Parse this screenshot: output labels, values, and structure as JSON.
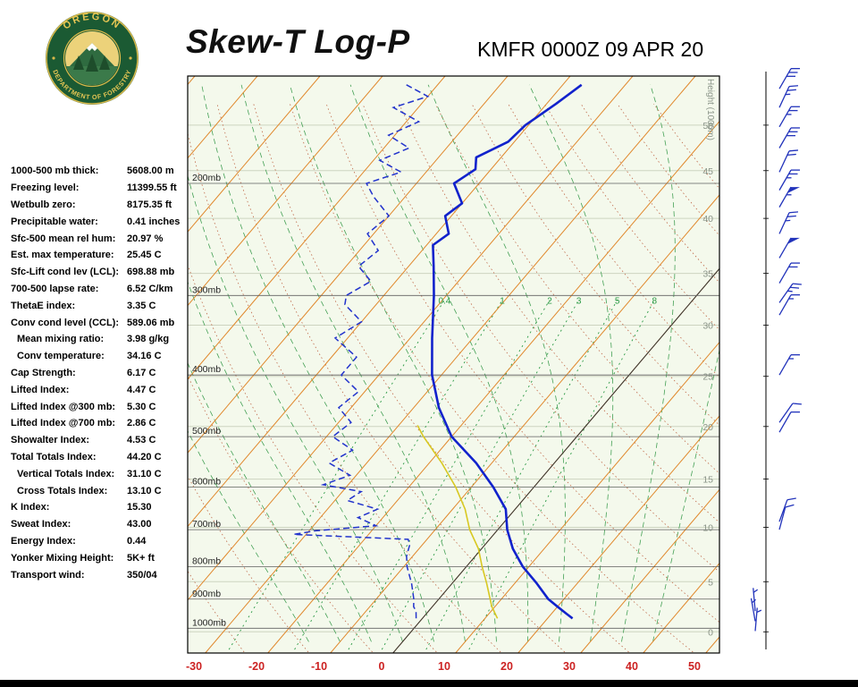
{
  "header": {
    "title": "Skew-T Log-P",
    "station": "KMFR 0000Z 09 APR 20",
    "logo": {
      "top_text": "OREGON",
      "bottom_text": "DEPARTMENT OF FORESTRY"
    }
  },
  "indices": [
    {
      "label": "1000-500 mb thick:",
      "value": "5608.00 m",
      "indent": false
    },
    {
      "label": "Freezing level:",
      "value": "11399.55 ft",
      "indent": false
    },
    {
      "label": "Wetbulb zero:",
      "value": "8175.35 ft",
      "indent": false
    },
    {
      "label": "Precipitable water:",
      "value": "0.41 inches",
      "indent": false
    },
    {
      "label": "Sfc-500 mean rel hum:",
      "value": "20.97 %",
      "indent": false
    },
    {
      "label": "Est. max temperature:",
      "value": "25.45 C",
      "indent": false
    },
    {
      "label": "Sfc-Lift cond lev (LCL):",
      "value": "698.88 mb",
      "indent": false
    },
    {
      "label": "700-500 lapse rate:",
      "value": "6.52 C/km",
      "indent": false
    },
    {
      "label": "ThetaE index:",
      "value": "3.35 C",
      "indent": false
    },
    {
      "label": "Conv cond level (CCL):",
      "value": "589.06 mb",
      "indent": false
    },
    {
      "label": "Mean mixing ratio:",
      "value": "3.98 g/kg",
      "indent": true
    },
    {
      "label": "Conv temperature:",
      "value": "34.16 C",
      "indent": true
    },
    {
      "label": "Cap Strength:",
      "value": "6.17 C",
      "indent": false
    },
    {
      "label": "Lifted Index:",
      "value": "4.47 C",
      "indent": false
    },
    {
      "label": "Lifted Index @300 mb:",
      "value": "5.30 C",
      "indent": false
    },
    {
      "label": "Lifted Index @700 mb:",
      "value": "2.86 C",
      "indent": false
    },
    {
      "label": "Showalter Index:",
      "value": "4.53 C",
      "indent": false
    },
    {
      "label": "Total Totals Index:",
      "value": "44.20 C",
      "indent": false
    },
    {
      "label": "Vertical Totals Index:",
      "value": "31.10 C",
      "indent": true
    },
    {
      "label": "Cross Totals Index:",
      "value": "13.10 C",
      "indent": true
    },
    {
      "label": "K Index:",
      "value": "15.30",
      "indent": false
    },
    {
      "label": "Sweat Index:",
      "value": "43.00",
      "indent": false
    },
    {
      "label": "Energy Index:",
      "value": "0.44",
      "indent": false
    },
    {
      "label": "Yonker Mixing Height:",
      "value": "5K+ ft",
      "indent": false
    },
    {
      "label": "Transport wind:",
      "value": "350/04",
      "indent": false
    }
  ],
  "chart_data": {
    "type": "line",
    "title": "Skew-T Log-P sounding",
    "x_axis": {
      "unit": "C",
      "ticks": [
        -30,
        -20,
        -10,
        0,
        10,
        20,
        30,
        40,
        50
      ],
      "label_color": "#cc2222"
    },
    "pressure_levels_mb": [
      200,
      300,
      400,
      500,
      600,
      700,
      800,
      900,
      1000
    ],
    "pressure_label_suffix": "mb",
    "height_axis": {
      "title": "Height (1000m)",
      "ticks": [
        {
          "label": "50",
          "p": 162
        },
        {
          "label": "45",
          "p": 191
        },
        {
          "label": "40",
          "p": 227
        },
        {
          "label": "35",
          "p": 277
        },
        {
          "label": "30",
          "p": 334
        },
        {
          "label": "25",
          "p": 402
        },
        {
          "label": "20",
          "p": 482
        },
        {
          "label": "15",
          "p": 583
        },
        {
          "label": "10",
          "p": 694
        },
        {
          "label": "5",
          "p": 845
        },
        {
          "label": "0",
          "p": 1013
        }
      ]
    },
    "isotherms_c": {
      "min": -110,
      "max": 50,
      "step": 10
    },
    "dry_adiabats_c": {
      "min": -30,
      "max": 140,
      "step": 10
    },
    "moist_adiabats_c": {
      "min": -15,
      "max": 40,
      "step": 5
    },
    "mixing_ratio_lines_gkg": [
      0.4,
      1,
      2,
      3,
      5,
      8
    ],
    "temperature_trace": [
      [
        965,
        24
      ],
      [
        950,
        22.5
      ],
      [
        925,
        20
      ],
      [
        900,
        17.5
      ],
      [
        850,
        13.5
      ],
      [
        800,
        9
      ],
      [
        750,
        5
      ],
      [
        700,
        1.5
      ],
      [
        650,
        -1.5
      ],
      [
        600,
        -6.5
      ],
      [
        550,
        -12.5
      ],
      [
        500,
        -20
      ],
      [
        450,
        -26
      ],
      [
        400,
        -31.5
      ],
      [
        350,
        -36.5
      ],
      [
        300,
        -42
      ],
      [
        270,
        -46
      ],
      [
        250,
        -49
      ],
      [
        240,
        -48
      ],
      [
        225,
        -51
      ],
      [
        215,
        -50
      ],
      [
        200,
        -54
      ],
      [
        190,
        -52.5
      ],
      [
        182,
        -54
      ],
      [
        172,
        -51
      ],
      [
        162,
        -50.5
      ],
      [
        150,
        -48.5
      ],
      [
        140,
        -47
      ]
    ],
    "dewpoint_trace": [
      [
        965,
        -1
      ],
      [
        940,
        -2
      ],
      [
        925,
        -3
      ],
      [
        900,
        -4
      ],
      [
        850,
        -6.5
      ],
      [
        800,
        -9.5
      ],
      [
        770,
        -11
      ],
      [
        740,
        -12
      ],
      [
        725,
        -13
      ],
      [
        712,
        -32
      ],
      [
        703,
        -29
      ],
      [
        690,
        -20
      ],
      [
        670,
        -24
      ],
      [
        650,
        -22
      ],
      [
        630,
        -28
      ],
      [
        610,
        -27
      ],
      [
        595,
        -34
      ],
      [
        575,
        -31
      ],
      [
        550,
        -36
      ],
      [
        525,
        -34
      ],
      [
        500,
        -39
      ],
      [
        475,
        -38
      ],
      [
        450,
        -42
      ],
      [
        425,
        -41
      ],
      [
        400,
        -46
      ],
      [
        375,
        -46
      ],
      [
        350,
        -52
      ],
      [
        330,
        -50
      ],
      [
        310,
        -55
      ],
      [
        300,
        -56
      ],
      [
        285,
        -54
      ],
      [
        270,
        -58
      ],
      [
        255,
        -57
      ],
      [
        240,
        -61
      ],
      [
        225,
        -60
      ],
      [
        210,
        -65
      ],
      [
        200,
        -68
      ],
      [
        192,
        -64
      ],
      [
        184,
        -69
      ],
      [
        176,
        -66
      ],
      [
        168,
        -71
      ],
      [
        160,
        -68
      ],
      [
        152,
        -74
      ],
      [
        146,
        -70
      ],
      [
        140,
        -75
      ]
    ],
    "wetbulb_trace": [
      [
        965,
        12
      ],
      [
        925,
        9.5
      ],
      [
        850,
        5.5
      ],
      [
        800,
        2.5
      ],
      [
        750,
        -0.5
      ],
      [
        700,
        -4.5
      ],
      [
        650,
        -8
      ],
      [
        600,
        -12.5
      ],
      [
        550,
        -18
      ],
      [
        500,
        -24.5
      ],
      [
        480,
        -27
      ]
    ],
    "wind_barbs": [
      {
        "p": 142,
        "dir": 30,
        "spd": 30
      },
      {
        "p": 152,
        "dir": 25,
        "spd": 25
      },
      {
        "p": 163,
        "dir": 30,
        "spd": 25
      },
      {
        "p": 176,
        "dir": 30,
        "spd": 30
      },
      {
        "p": 192,
        "dir": 25,
        "spd": 20
      },
      {
        "p": 205,
        "dir": 30,
        "spd": 25
      },
      {
        "p": 218,
        "dir": 30,
        "spd": 55
      },
      {
        "p": 240,
        "dir": 25,
        "spd": 25
      },
      {
        "p": 262,
        "dir": 30,
        "spd": 50
      },
      {
        "p": 287,
        "dir": 30,
        "spd": 20
      },
      {
        "p": 308,
        "dir": 35,
        "spd": 25
      },
      {
        "p": 322,
        "dir": 30,
        "spd": 15
      },
      {
        "p": 400,
        "dir": 30,
        "spd": 15
      },
      {
        "p": 475,
        "dir": 35,
        "spd": 10
      },
      {
        "p": 492,
        "dir": 30,
        "spd": 10
      },
      {
        "p": 680,
        "dir": 20,
        "spd": 10
      },
      {
        "p": 700,
        "dir": 15,
        "spd": 10
      },
      {
        "p": 940,
        "dir": 355,
        "spd": 5,
        "xoff": -27
      },
      {
        "p": 975,
        "dir": 350,
        "spd": 4,
        "xoff": -27
      },
      {
        "p": 1010,
        "dir": 5,
        "spd": 5,
        "xoff": -27
      }
    ],
    "colors": {
      "plot_bg": "#f4f9ec",
      "isotherm": "#e0882c",
      "dry_adiabat": "#c06a4a",
      "moist_adiabat": "#44a055",
      "mixing_ratio": "#2a9944",
      "pressure_line": "#606060",
      "height_line": "#cdd4c0",
      "border": "#000000",
      "temperature": "#1122cc",
      "dewpoint": "#2233cc",
      "wetbulb": "#d8c822",
      "zero_line": "#333333",
      "barb": "#2233bb",
      "temp_label": "#cc2222",
      "pressure_label": "#222222",
      "height_label": "#8a9488",
      "mixing_label": "#2a9944"
    }
  }
}
